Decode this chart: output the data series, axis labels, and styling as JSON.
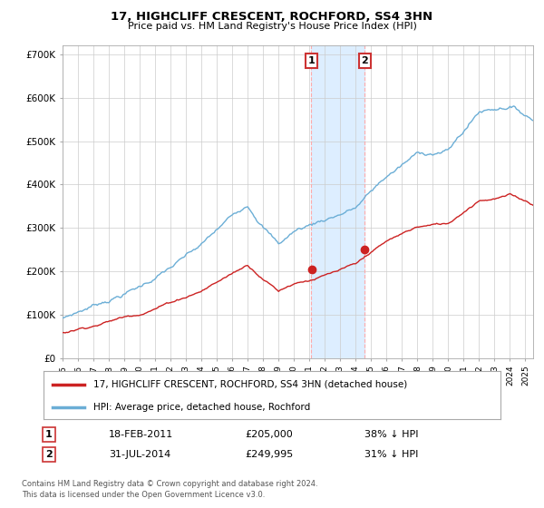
{
  "title": "17, HIGHCLIFF CRESCENT, ROCHFORD, SS4 3HN",
  "subtitle": "Price paid vs. HM Land Registry's House Price Index (HPI)",
  "hpi_color": "#6baed6",
  "price_color": "#cc2222",
  "highlight_color": "#ddeeff",
  "annotation1": {
    "label": "1",
    "date_str": "18-FEB-2011",
    "price_str": "£205,000",
    "pct_str": "38% ↓ HPI",
    "x_year": 2011.13
  },
  "annotation2": {
    "label": "2",
    "date_str": "31-JUL-2014",
    "price_str": "£249,995",
    "pct_str": "31% ↓ HPI",
    "x_year": 2014.58
  },
  "legend_property": "17, HIGHCLIFF CRESCENT, ROCHFORD, SS4 3HN (detached house)",
  "legend_hpi": "HPI: Average price, detached house, Rochford",
  "footer1": "Contains HM Land Registry data © Crown copyright and database right 2024.",
  "footer2": "This data is licensed under the Open Government Licence v3.0.",
  "ylim": [
    0,
    720000
  ],
  "xlim": [
    1995.0,
    2025.5
  ],
  "yticks": [
    0,
    100000,
    200000,
    300000,
    400000,
    500000,
    600000,
    700000
  ],
  "ytick_labels": [
    "£0",
    "£100K",
    "£200K",
    "£300K",
    "£400K",
    "£500K",
    "£600K",
    "£700K"
  ],
  "xticks": [
    1995,
    1996,
    1997,
    1998,
    1999,
    2000,
    2001,
    2002,
    2003,
    2004,
    2005,
    2006,
    2007,
    2008,
    2009,
    2010,
    2011,
    2012,
    2013,
    2014,
    2015,
    2016,
    2017,
    2018,
    2019,
    2020,
    2021,
    2022,
    2023,
    2024,
    2025
  ],
  "sale1_price": 205000,
  "sale2_price": 249995,
  "sale1_x": 2011.13,
  "sale2_x": 2014.58
}
